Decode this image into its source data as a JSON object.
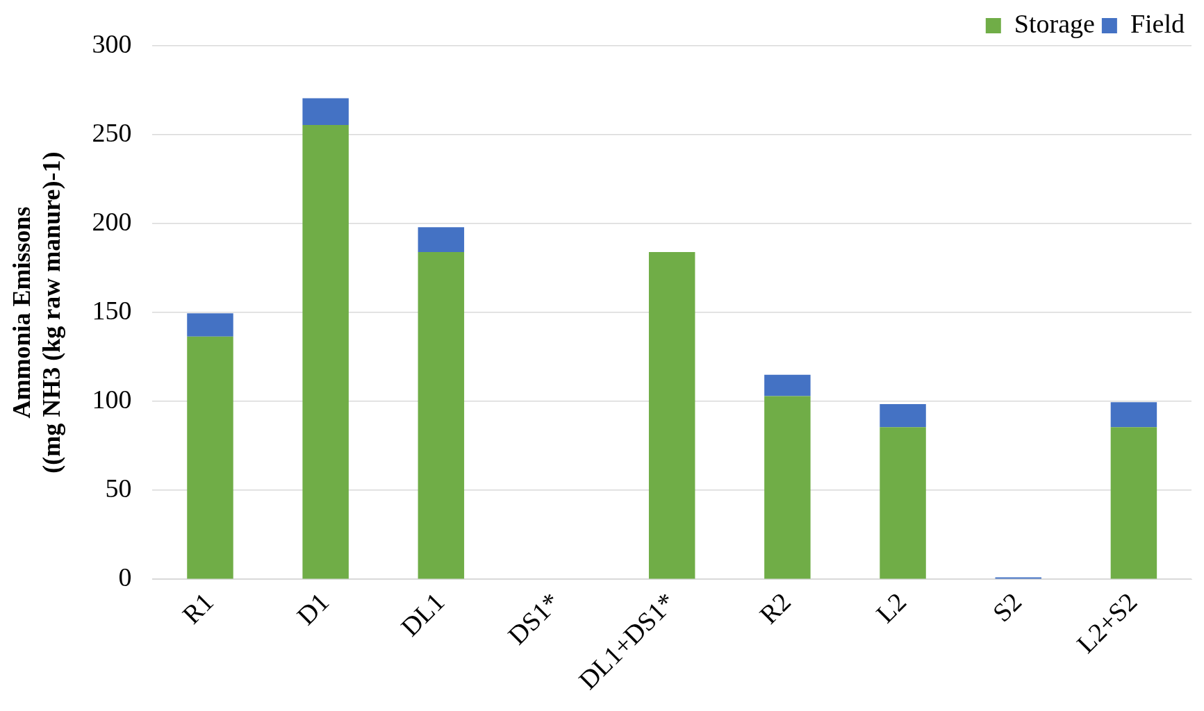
{
  "chart_data": {
    "type": "bar",
    "stacked": true,
    "ylabel": "Ammonia Emissons\n((mg NH3 (kg raw manure)-1)",
    "categories": [
      "R1",
      "D1",
      "DL1",
      "DS1*",
      "DL1+DS1*",
      "R2",
      "L2",
      "S2",
      "L2+S2"
    ],
    "series": [
      {
        "name": "Storage",
        "color": "#70ad47",
        "values": [
          136.5,
          255.5,
          184,
          0,
          184,
          103,
          85.5,
          0,
          85.5
        ]
      },
      {
        "name": "Field",
        "color": "#4472c4",
        "values": [
          13,
          15,
          14,
          0,
          0,
          12,
          13,
          1,
          14
        ]
      }
    ],
    "ylim": [
      0,
      300
    ],
    "yticks": [
      0,
      50,
      100,
      150,
      200,
      250,
      300
    ],
    "grid": "y",
    "legend": "top right"
  }
}
